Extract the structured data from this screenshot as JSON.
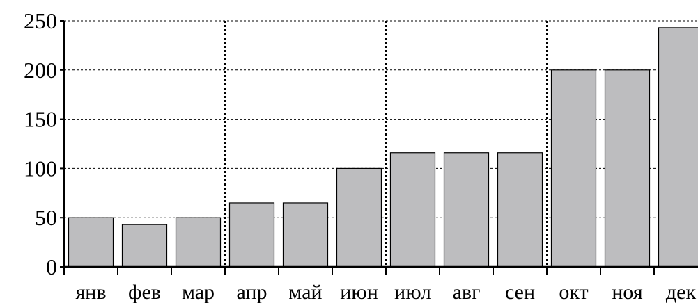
{
  "chart_data": {
    "type": "bar",
    "categories": [
      "янв",
      "фев",
      "мар",
      "апр",
      "май",
      "июн",
      "июл",
      "авг",
      "сен",
      "окт",
      "ноя",
      "дек"
    ],
    "values": [
      50,
      43,
      50,
      65,
      65,
      100,
      116,
      116,
      116,
      200,
      200,
      243
    ],
    "ylim": [
      0,
      250
    ],
    "yticks": [
      0,
      50,
      100,
      150,
      200,
      250
    ],
    "ytick_labels": [
      "0",
      "50",
      "100",
      "150",
      "200",
      "250"
    ],
    "grid": "horizontal dashed",
    "quarter_separators": true,
    "colors": {
      "bar_fill": "#bdbdbf",
      "bar_stroke": "#000000"
    }
  }
}
